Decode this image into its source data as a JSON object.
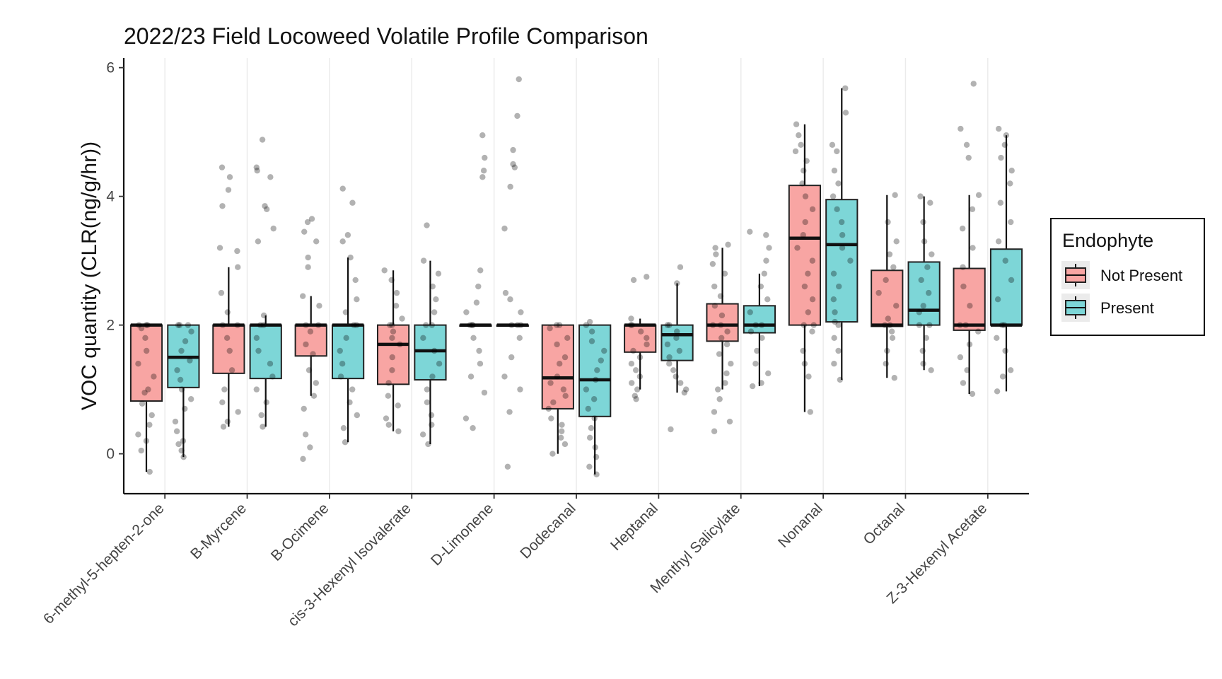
{
  "chart_data": {
    "type": "boxplot",
    "title": "2022/23 Field Locoweed Volatile Profile Comparison",
    "xlabel": "",
    "ylabel": "VOC quantity (CLR(ng/g/hr))",
    "ylim": [
      -0.62,
      6.15
    ],
    "yticks": [
      0,
      2,
      4,
      6
    ],
    "grid": "vertical-major",
    "legend": {
      "title": "Endophyte",
      "position": "right",
      "entries": [
        "Not Present",
        "Present"
      ]
    },
    "colors": {
      "Not Present": "#F8A5A3",
      "Present": "#7DD6D7"
    },
    "categories": [
      "6-methyl-5-hepten-2-one",
      "B-Myrcene",
      "B-Ocimene",
      "cis-3-Hexenyl Isovalerate",
      "D-Limonene",
      "Dodecanal",
      "Heptanal",
      "Menthyl Salicylate",
      "Nonanal",
      "Octanal",
      "Z-3-Hexenyl Acetate"
    ],
    "series": [
      {
        "name": "Not Present",
        "boxes": [
          {
            "min": -0.28,
            "q1": 0.82,
            "median": 2.0,
            "q3": 2.0,
            "max": 2.0
          },
          {
            "min": 0.42,
            "q1": 1.25,
            "median": 2.0,
            "q3": 2.0,
            "max": 2.9
          },
          {
            "min": 0.9,
            "q1": 1.52,
            "median": 2.0,
            "q3": 2.0,
            "max": 2.45
          },
          {
            "min": 0.35,
            "q1": 1.08,
            "median": 1.7,
            "q3": 2.0,
            "max": 2.85
          },
          {
            "min": 2.0,
            "q1": 2.0,
            "median": 2.0,
            "q3": 2.0,
            "max": 2.0
          },
          {
            "min": 0.0,
            "q1": 0.7,
            "median": 1.18,
            "q3": 2.0,
            "max": 2.0
          },
          {
            "min": 1.0,
            "q1": 1.58,
            "median": 2.0,
            "q3": 2.0,
            "max": 2.1
          },
          {
            "min": 1.0,
            "q1": 1.75,
            "median": 2.0,
            "q3": 2.33,
            "max": 3.2
          },
          {
            "min": 0.65,
            "q1": 2.0,
            "median": 3.35,
            "q3": 4.17,
            "max": 5.12
          },
          {
            "min": 1.18,
            "q1": 1.98,
            "median": 2.0,
            "q3": 2.85,
            "max": 4.02
          },
          {
            "min": 0.93,
            "q1": 1.92,
            "median": 2.0,
            "q3": 2.88,
            "max": 4.02
          }
        ],
        "points": [
          [
            2.0,
            2.0,
            2.0,
            1.95,
            1.8,
            1.6,
            1.4,
            1.2,
            1.0,
            0.95,
            0.78,
            0.6,
            0.45,
            0.3,
            0.2,
            0.05,
            -0.28
          ],
          [
            4.45,
            4.3,
            4.1,
            3.85,
            3.2,
            3.15,
            2.9,
            2.5,
            2.2,
            2.0,
            2.0,
            1.8,
            1.6,
            1.3,
            1.0,
            0.8,
            0.65,
            0.5,
            0.42
          ],
          [
            3.65,
            3.6,
            3.45,
            3.3,
            3.05,
            2.9,
            2.45,
            2.3,
            2.0,
            2.0,
            1.9,
            1.7,
            1.55,
            1.3,
            1.1,
            0.9,
            0.7,
            0.3,
            0.1,
            -0.08
          ],
          [
            2.85,
            2.7,
            2.5,
            2.3,
            2.1,
            2.0,
            2.0,
            1.9,
            1.8,
            1.7,
            1.5,
            1.3,
            1.1,
            0.9,
            0.75,
            0.55,
            0.45,
            0.35
          ],
          [
            4.95,
            4.6,
            4.4,
            4.3,
            2.85,
            2.6,
            2.35,
            2.2,
            2.0,
            2.0,
            2.0,
            1.8,
            1.6,
            1.4,
            1.2,
            0.95,
            0.55,
            0.4
          ],
          [
            2.0,
            2.0,
            1.95,
            1.8,
            1.7,
            1.5,
            1.4,
            1.2,
            1.1,
            1.0,
            0.9,
            0.8,
            0.7,
            0.55,
            0.45,
            0.35,
            0.25,
            0.15,
            0.0
          ],
          [
            2.75,
            2.7,
            2.1,
            2.0,
            2.0,
            1.9,
            1.8,
            1.7,
            1.6,
            1.5,
            1.4,
            1.3,
            1.2,
            1.1,
            1.0,
            0.9,
            0.85
          ],
          [
            3.25,
            3.2,
            3.1,
            2.95,
            2.8,
            2.6,
            2.45,
            2.3,
            2.15,
            2.0,
            2.0,
            1.9,
            1.8,
            1.7,
            1.55,
            1.4,
            1.25,
            1.1,
            1.0,
            0.85,
            0.65,
            0.5,
            0.35
          ],
          [
            5.12,
            4.95,
            4.8,
            4.7,
            4.55,
            4.4,
            4.2,
            4.0,
            3.8,
            3.6,
            3.4,
            3.2,
            3.0,
            2.8,
            2.6,
            2.4,
            2.2,
            2.0,
            2.0,
            1.9,
            1.6,
            1.4,
            1.2,
            0.65
          ],
          [
            4.02,
            3.6,
            3.3,
            3.1,
            2.9,
            2.7,
            2.5,
            2.3,
            2.1,
            2.0,
            2.0,
            1.9,
            1.8,
            1.6,
            1.4,
            1.18
          ],
          [
            5.75,
            5.05,
            4.8,
            4.6,
            4.02,
            3.8,
            3.5,
            3.2,
            2.9,
            2.6,
            2.3,
            2.0,
            2.0,
            1.9,
            1.7,
            1.5,
            1.3,
            1.1,
            0.93
          ]
        ]
      },
      {
        "name": "Present",
        "boxes": [
          {
            "min": -0.05,
            "q1": 1.03,
            "median": 1.5,
            "q3": 2.0,
            "max": 2.0
          },
          {
            "min": 0.42,
            "q1": 1.17,
            "median": 2.0,
            "q3": 2.0,
            "max": 2.15
          },
          {
            "min": 0.18,
            "q1": 1.17,
            "median": 2.0,
            "q3": 2.0,
            "max": 3.05
          },
          {
            "min": 0.15,
            "q1": 1.15,
            "median": 1.6,
            "q3": 2.0,
            "max": 3.0
          },
          {
            "min": 2.0,
            "q1": 2.0,
            "median": 2.0,
            "q3": 2.0,
            "max": 2.0
          },
          {
            "min": -0.32,
            "q1": 0.58,
            "median": 1.15,
            "q3": 2.0,
            "max": 2.0
          },
          {
            "min": 0.95,
            "q1": 1.45,
            "median": 1.85,
            "q3": 2.0,
            "max": 2.65
          },
          {
            "min": 1.05,
            "q1": 1.88,
            "median": 2.0,
            "q3": 2.3,
            "max": 2.8
          },
          {
            "min": 1.15,
            "q1": 2.05,
            "median": 3.25,
            "q3": 3.95,
            "max": 5.68
          },
          {
            "min": 1.3,
            "q1": 2.0,
            "median": 2.23,
            "q3": 2.98,
            "max": 4.0
          },
          {
            "min": 0.97,
            "q1": 2.0,
            "median": 2.0,
            "q3": 3.18,
            "max": 4.95
          }
        ],
        "points": [
          [
            2.0,
            2.0,
            2.0,
            1.9,
            1.75,
            1.6,
            1.45,
            1.3,
            1.15,
            1.0,
            0.85,
            0.7,
            0.5,
            0.35,
            0.2,
            0.15,
            0.05,
            -0.05
          ],
          [
            4.88,
            4.45,
            4.4,
            4.3,
            3.85,
            3.8,
            3.5,
            3.3,
            2.15,
            2.0,
            2.0,
            1.8,
            1.6,
            1.4,
            1.2,
            1.0,
            0.8,
            0.6,
            0.42
          ],
          [
            4.12,
            3.9,
            3.4,
            3.3,
            3.05,
            2.7,
            2.4,
            2.2,
            2.0,
            2.0,
            1.8,
            1.6,
            1.4,
            1.2,
            1.0,
            0.8,
            0.6,
            0.4,
            0.18
          ],
          [
            3.55,
            3.0,
            2.8,
            2.6,
            2.4,
            2.2,
            2.0,
            2.0,
            1.8,
            1.6,
            1.4,
            1.2,
            1.0,
            0.8,
            0.6,
            0.45,
            0.3,
            0.15
          ],
          [
            5.82,
            5.25,
            4.72,
            4.5,
            4.45,
            4.15,
            3.5,
            2.5,
            2.4,
            2.2,
            2.0,
            2.0,
            2.0,
            1.8,
            1.5,
            1.2,
            1.0,
            0.65,
            -0.2
          ],
          [
            2.05,
            2.0,
            1.9,
            1.75,
            1.6,
            1.45,
            1.3,
            1.15,
            1.0,
            0.85,
            0.7,
            0.55,
            0.4,
            0.25,
            0.1,
            -0.05,
            -0.2,
            -0.32
          ],
          [
            2.9,
            2.65,
            2.0,
            2.0,
            1.9,
            1.8,
            1.7,
            1.6,
            1.5,
            1.4,
            1.3,
            1.2,
            1.1,
            1.0,
            0.95,
            0.38
          ],
          [
            3.45,
            3.4,
            3.2,
            3.0,
            2.8,
            2.6,
            2.4,
            2.2,
            2.0,
            2.0,
            1.9,
            1.8,
            1.6,
            1.4,
            1.25,
            1.1,
            1.05
          ],
          [
            5.68,
            5.3,
            4.8,
            4.7,
            4.4,
            4.2,
            4.0,
            3.8,
            3.6,
            3.4,
            3.2,
            3.0,
            2.8,
            2.6,
            2.4,
            2.2,
            2.05,
            2.0,
            1.8,
            1.6,
            1.4,
            1.15
          ],
          [
            4.0,
            3.9,
            3.6,
            3.3,
            3.1,
            2.9,
            2.7,
            2.5,
            2.3,
            2.2,
            2.0,
            2.0,
            1.8,
            1.6,
            1.4,
            1.3
          ],
          [
            5.05,
            4.95,
            4.8,
            4.6,
            4.4,
            4.2,
            3.9,
            3.6,
            3.3,
            3.0,
            2.7,
            2.4,
            2.0,
            2.0,
            1.8,
            1.6,
            1.3,
            1.2,
            0.97
          ]
        ]
      }
    ]
  }
}
